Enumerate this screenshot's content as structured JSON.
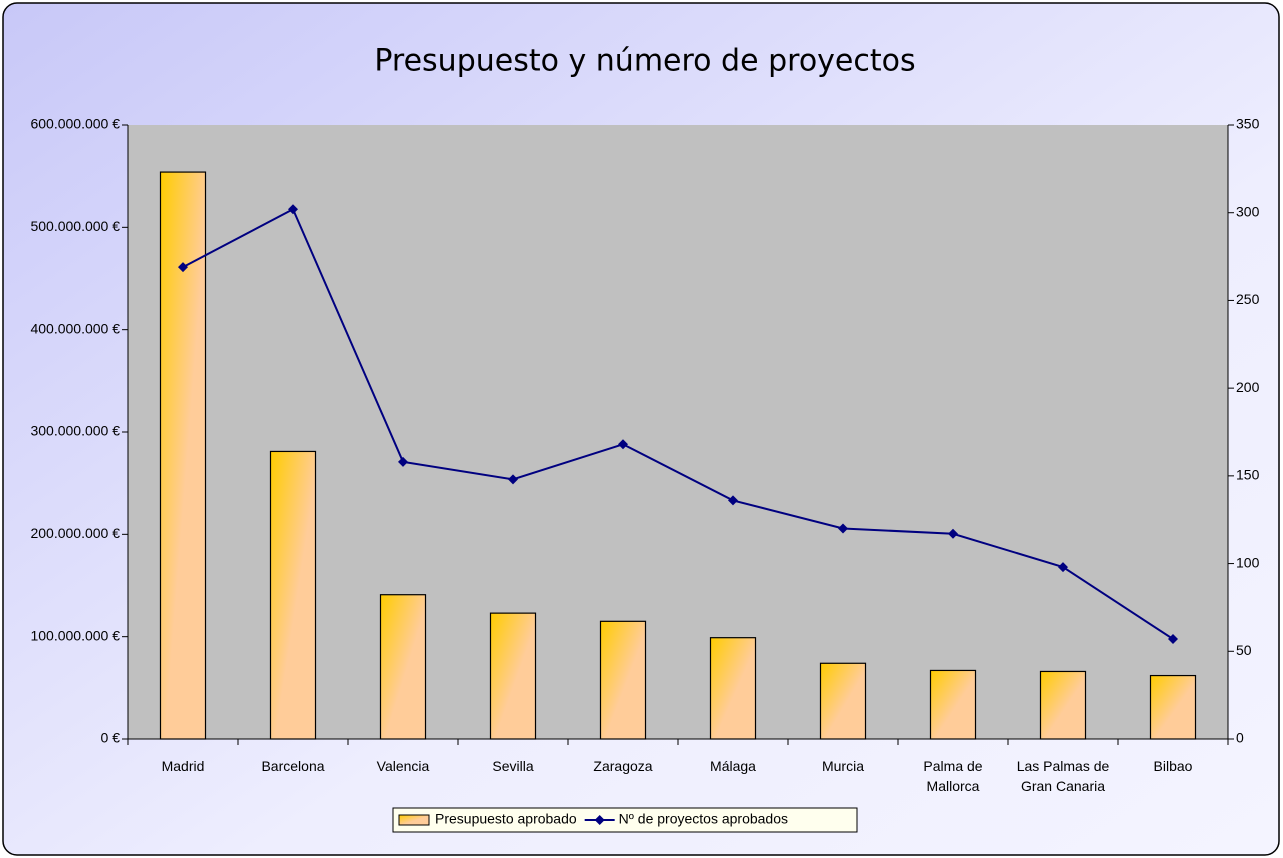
{
  "chart_data": {
    "type": "bar",
    "title": "Presupuesto y número de proyectos",
    "categories": [
      "Madrid",
      "Barcelona",
      "Valencia",
      "Sevilla",
      "Zaragoza",
      "Málaga",
      "Murcia",
      "Palma de Mallorca",
      "Las Palmas de Gran Canaria",
      "Bilbao"
    ],
    "series": [
      {
        "name": "Presupuesto aprobado",
        "type": "bar",
        "color": "#ffcc00",
        "values": [
          554000000,
          281000000,
          141000000,
          123000000,
          115000000,
          99000000,
          74000000,
          67000000,
          66000000,
          62000000
        ]
      },
      {
        "name": "Nº de proyectos aprobados",
        "type": "line",
        "axis": "y2",
        "color": "#000080",
        "values": [
          269,
          302,
          158,
          148,
          168,
          136,
          120,
          117,
          98,
          57
        ]
      }
    ],
    "ylim": [
      0,
      600000000
    ],
    "yticks": [
      {
        "value": 0,
        "label": "0 €"
      },
      {
        "value": 100000000,
        "label": "100.000.000 €"
      },
      {
        "value": 200000000,
        "label": "200.000.000 €"
      },
      {
        "value": 300000000,
        "label": "300.000.000 €"
      },
      {
        "value": 400000000,
        "label": "400.000.000 €"
      },
      {
        "value": 500000000,
        "label": "500.000.000 €"
      },
      {
        "value": 600000000,
        "label": "600.000.000 €"
      }
    ],
    "y2lim": [
      0,
      350
    ],
    "y2ticks": [
      0,
      50,
      100,
      150,
      200,
      250,
      300,
      350
    ],
    "grid": false,
    "legend": "bottom"
  }
}
